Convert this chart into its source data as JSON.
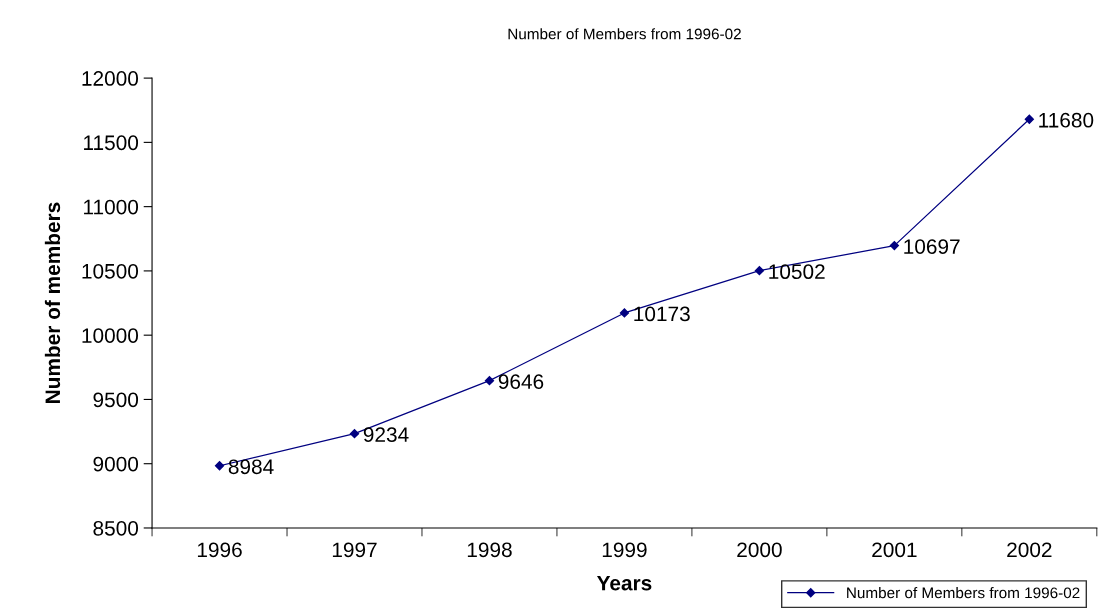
{
  "chart_data": {
    "type": "line",
    "title": "Number of Members from 1996-02",
    "xlabel": "Years",
    "ylabel": "Number of members",
    "categories": [
      "1996",
      "1997",
      "1998",
      "1999",
      "2000",
      "2001",
      "2002"
    ],
    "series": [
      {
        "name": "Number of Members from 1996-02",
        "color": "#000080",
        "values": [
          8984,
          9234,
          9646,
          10173,
          10502,
          10697,
          11680
        ]
      }
    ],
    "ylim": [
      8500,
      12000
    ],
    "yticks": [
      8500,
      9000,
      9500,
      10000,
      10500,
      11000,
      11500,
      12000
    ],
    "grid": false,
    "legend": "bottom right",
    "marker": "diamond",
    "line_style": "solid",
    "data_labels": true
  }
}
